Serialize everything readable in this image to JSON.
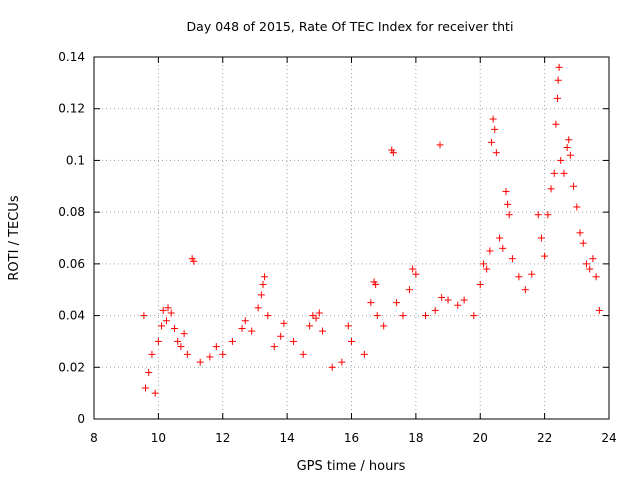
{
  "chart_data": {
    "type": "scatter",
    "title": "Day 048 of 2015, Rate Of TEC Index for receiver thti",
    "xlabel": "GPS time / hours",
    "ylabel": "ROTI / TECUs",
    "xlim": [
      8,
      24
    ],
    "ylim": [
      0,
      0.14
    ],
    "x_ticks": [
      8,
      10,
      12,
      14,
      16,
      18,
      20,
      22,
      24
    ],
    "x_tick_labels": [
      "8",
      "10",
      "12",
      "14",
      "16",
      "18",
      "20",
      "22",
      "24"
    ],
    "y_ticks": [
      0,
      0.02,
      0.04,
      0.06,
      0.08,
      0.1,
      0.12,
      0.14
    ],
    "y_tick_labels": [
      "0",
      "0.02",
      "0.04",
      "0.06",
      "0.08",
      "0.1",
      "0.12",
      "0.14"
    ],
    "grid": true,
    "marker": "+",
    "marker_color": "#ff0000",
    "grid_color": "#a0a0a0",
    "series": [
      {
        "name": "ROTI",
        "points": [
          [
            9.55,
            0.04
          ],
          [
            9.6,
            0.012
          ],
          [
            9.7,
            0.018
          ],
          [
            9.8,
            0.025
          ],
          [
            9.9,
            0.01
          ],
          [
            10.0,
            0.03
          ],
          [
            10.1,
            0.036
          ],
          [
            10.15,
            0.042
          ],
          [
            10.25,
            0.038
          ],
          [
            10.3,
            0.043
          ],
          [
            10.4,
            0.041
          ],
          [
            10.5,
            0.035
          ],
          [
            10.6,
            0.03
          ],
          [
            10.7,
            0.028
          ],
          [
            10.8,
            0.033
          ],
          [
            10.9,
            0.025
          ],
          [
            11.05,
            0.062
          ],
          [
            11.1,
            0.061
          ],
          [
            11.3,
            0.022
          ],
          [
            11.6,
            0.024
          ],
          [
            11.8,
            0.028
          ],
          [
            12.0,
            0.025
          ],
          [
            12.3,
            0.03
          ],
          [
            12.6,
            0.035
          ],
          [
            12.7,
            0.038
          ],
          [
            12.9,
            0.034
          ],
          [
            13.1,
            0.043
          ],
          [
            13.2,
            0.048
          ],
          [
            13.25,
            0.052
          ],
          [
            13.3,
            0.055
          ],
          [
            13.4,
            0.04
          ],
          [
            13.6,
            0.028
          ],
          [
            13.8,
            0.032
          ],
          [
            13.9,
            0.037
          ],
          [
            14.2,
            0.03
          ],
          [
            14.5,
            0.025
          ],
          [
            14.7,
            0.036
          ],
          [
            14.8,
            0.04
          ],
          [
            14.9,
            0.039
          ],
          [
            15.0,
            0.041
          ],
          [
            15.1,
            0.034
          ],
          [
            15.4,
            0.02
          ],
          [
            15.7,
            0.022
          ],
          [
            15.9,
            0.036
          ],
          [
            16.0,
            0.03
          ],
          [
            16.4,
            0.025
          ],
          [
            16.6,
            0.045
          ],
          [
            16.7,
            0.053
          ],
          [
            16.75,
            0.052
          ],
          [
            16.8,
            0.04
          ],
          [
            17.0,
            0.036
          ],
          [
            17.25,
            0.104
          ],
          [
            17.3,
            0.103
          ],
          [
            17.4,
            0.045
          ],
          [
            17.6,
            0.04
          ],
          [
            17.8,
            0.05
          ],
          [
            17.9,
            0.058
          ],
          [
            18.0,
            0.056
          ],
          [
            18.3,
            0.04
          ],
          [
            18.6,
            0.042
          ],
          [
            18.75,
            0.106
          ],
          [
            18.8,
            0.047
          ],
          [
            19.0,
            0.046
          ],
          [
            19.3,
            0.044
          ],
          [
            19.5,
            0.046
          ],
          [
            19.8,
            0.04
          ],
          [
            20.0,
            0.052
          ],
          [
            20.1,
            0.06
          ],
          [
            20.2,
            0.058
          ],
          [
            20.3,
            0.065
          ],
          [
            20.35,
            0.107
          ],
          [
            20.4,
            0.116
          ],
          [
            20.45,
            0.112
          ],
          [
            20.5,
            0.103
          ],
          [
            20.6,
            0.07
          ],
          [
            20.7,
            0.066
          ],
          [
            20.8,
            0.088
          ],
          [
            20.85,
            0.083
          ],
          [
            20.9,
            0.079
          ],
          [
            21.0,
            0.062
          ],
          [
            21.2,
            0.055
          ],
          [
            21.4,
            0.05
          ],
          [
            21.6,
            0.056
          ],
          [
            21.8,
            0.079
          ],
          [
            21.9,
            0.07
          ],
          [
            22.0,
            0.063
          ],
          [
            22.1,
            0.079
          ],
          [
            22.2,
            0.089
          ],
          [
            22.3,
            0.095
          ],
          [
            22.35,
            0.114
          ],
          [
            22.4,
            0.124
          ],
          [
            22.42,
            0.131
          ],
          [
            22.45,
            0.136
          ],
          [
            22.5,
            0.1
          ],
          [
            22.6,
            0.095
          ],
          [
            22.7,
            0.105
          ],
          [
            22.75,
            0.108
          ],
          [
            22.8,
            0.102
          ],
          [
            22.9,
            0.09
          ],
          [
            23.0,
            0.082
          ],
          [
            23.1,
            0.072
          ],
          [
            23.2,
            0.068
          ],
          [
            23.3,
            0.06
          ],
          [
            23.4,
            0.058
          ],
          [
            23.5,
            0.062
          ],
          [
            23.6,
            0.055
          ],
          [
            23.7,
            0.042
          ]
        ]
      }
    ]
  }
}
